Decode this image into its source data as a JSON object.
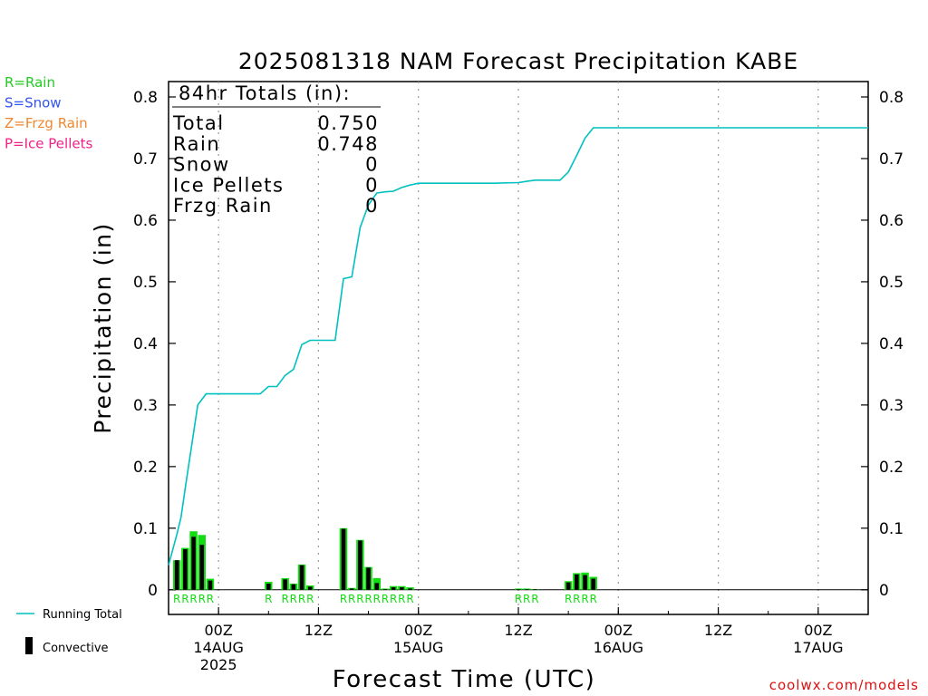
{
  "chart_data": {
    "type": "bar",
    "title": "2025081318 NAM Forecast Precipitation KABE",
    "xlabel": "Forecast Time (UTC)",
    "ylabel": "Precipitation (in)",
    "ylim": [
      -0.04,
      0.825
    ],
    "yticks": [
      "0",
      "0.1",
      "0.2",
      "0.3",
      "0.4",
      "0.5",
      "0.6",
      "0.7",
      "0.8"
    ],
    "grid": "vertical dotted at 00Z and 12Z",
    "x_ticks": [
      {
        "hour": 6,
        "label": "00Z",
        "date": "14AUG",
        "year": "2025"
      },
      {
        "hour": 18,
        "label": "12Z",
        "date": "",
        "year": ""
      },
      {
        "hour": 30,
        "label": "00Z",
        "date": "15AUG",
        "year": ""
      },
      {
        "hour": 42,
        "label": "12Z",
        "date": "",
        "year": ""
      },
      {
        "hour": 54,
        "label": "00Z",
        "date": "16AUG",
        "year": ""
      },
      {
        "hour": 66,
        "label": "12Z",
        "date": "",
        "year": ""
      },
      {
        "hour": 78,
        "label": "00Z",
        "date": "17AUG",
        "year": ""
      }
    ],
    "xlim": [
      0,
      84
    ],
    "totals_box": {
      "heading": "84hr Totals (in):",
      "rows": [
        {
          "label": "Total",
          "value": "0.750"
        },
        {
          "label": "Rain",
          "value": "0.748"
        },
        {
          "label": "Snow",
          "value": "0"
        },
        {
          "label": "Ice Pellets",
          "value": "0"
        },
        {
          "label": "Frzg Rain",
          "value": "0"
        }
      ]
    },
    "ptype_legend": [
      {
        "text": "R=Rain",
        "color": "#22cc22"
      },
      {
        "text": "S=Snow",
        "color": "#3355ee"
      },
      {
        "text": "Z=Frzg Rain",
        "color": "#ee8833"
      },
      {
        "text": "P=Ice Pellets",
        "color": "#ee2288"
      }
    ],
    "series_legend": [
      {
        "name": "Running Total",
        "color": "#00c0c0"
      },
      {
        "name": "Convective",
        "color": "#000000"
      }
    ],
    "bars": [
      {
        "hour": 1,
        "total": 0.048,
        "convective": 0.048,
        "ptype": "R"
      },
      {
        "hour": 2,
        "total": 0.068,
        "convective": 0.066,
        "ptype": "R"
      },
      {
        "hour": 3,
        "total": 0.095,
        "convective": 0.086,
        "ptype": "R"
      },
      {
        "hour": 4,
        "total": 0.089,
        "convective": 0.073,
        "ptype": "R"
      },
      {
        "hour": 5,
        "total": 0.018,
        "convective": 0.015,
        "ptype": "R"
      },
      {
        "hour": 12,
        "total": 0.013,
        "convective": 0.01,
        "ptype": "R"
      },
      {
        "hour": 14,
        "total": 0.019,
        "convective": 0.017,
        "ptype": "R"
      },
      {
        "hour": 15,
        "total": 0.01,
        "convective": 0.009,
        "ptype": "R"
      },
      {
        "hour": 16,
        "total": 0.041,
        "convective": 0.04,
        "ptype": "R"
      },
      {
        "hour": 17,
        "total": 0.007,
        "convective": 0.005,
        "ptype": "R"
      },
      {
        "hour": 21,
        "total": 0.1,
        "convective": 0.099,
        "ptype": "R"
      },
      {
        "hour": 22,
        "total": 0.003,
        "convective": 0.002,
        "ptype": "R"
      },
      {
        "hour": 23,
        "total": 0.081,
        "convective": 0.08,
        "ptype": "R"
      },
      {
        "hour": 24,
        "total": 0.037,
        "convective": 0.036,
        "ptype": "R"
      },
      {
        "hour": 25,
        "total": 0.019,
        "convective": 0.011,
        "ptype": "R"
      },
      {
        "hour": 26,
        "total": 0.002,
        "convective": 0.001,
        "ptype": "R"
      },
      {
        "hour": 27,
        "total": 0.006,
        "convective": 0.004,
        "ptype": "R"
      },
      {
        "hour": 28,
        "total": 0.006,
        "convective": 0.004,
        "ptype": "R"
      },
      {
        "hour": 29,
        "total": 0.004,
        "convective": 0.002,
        "ptype": "R"
      },
      {
        "hour": 42,
        "total": 0.002,
        "convective": 0.001,
        "ptype": "R"
      },
      {
        "hour": 43,
        "total": 0.002,
        "convective": 0.001,
        "ptype": "R"
      },
      {
        "hour": 44,
        "total": 0.001,
        "convective": 0.001,
        "ptype": "R"
      },
      {
        "hour": 48,
        "total": 0.014,
        "convective": 0.012,
        "ptype": "R"
      },
      {
        "hour": 49,
        "total": 0.027,
        "convective": 0.025,
        "ptype": "R"
      },
      {
        "hour": 50,
        "total": 0.028,
        "convective": 0.024,
        "ptype": "R"
      },
      {
        "hour": 51,
        "total": 0.021,
        "convective": 0.018,
        "ptype": "R"
      }
    ],
    "running_total": [
      [
        0,
        0.04
      ],
      [
        1,
        0.09
      ],
      [
        1.5,
        0.118
      ],
      [
        2,
        0.165
      ],
      [
        2.5,
        0.21
      ],
      [
        3,
        0.255
      ],
      [
        3.5,
        0.3
      ],
      [
        4.5,
        0.318
      ],
      [
        6,
        0.318
      ],
      [
        8,
        0.318
      ],
      [
        10,
        0.318
      ],
      [
        11,
        0.318
      ],
      [
        12,
        0.33
      ],
      [
        13,
        0.33
      ],
      [
        14,
        0.348
      ],
      [
        15,
        0.358
      ],
      [
        16,
        0.398
      ],
      [
        17,
        0.405
      ],
      [
        19,
        0.405
      ],
      [
        20,
        0.405
      ],
      [
        21,
        0.505
      ],
      [
        22,
        0.508
      ],
      [
        23,
        0.588
      ],
      [
        24,
        0.625
      ],
      [
        25,
        0.644
      ],
      [
        26,
        0.646
      ],
      [
        27,
        0.647
      ],
      [
        28,
        0.653
      ],
      [
        29,
        0.657
      ],
      [
        30,
        0.66
      ],
      [
        33,
        0.66
      ],
      [
        36,
        0.66
      ],
      [
        39,
        0.66
      ],
      [
        42,
        0.661
      ],
      [
        43,
        0.663
      ],
      [
        44,
        0.665
      ],
      [
        47,
        0.665
      ],
      [
        48,
        0.678
      ],
      [
        49,
        0.705
      ],
      [
        50,
        0.733
      ],
      [
        51,
        0.75
      ],
      [
        60,
        0.75
      ],
      [
        70,
        0.75
      ],
      [
        84,
        0.75
      ]
    ]
  },
  "footer": {
    "credit": "coolwx.com/models"
  }
}
